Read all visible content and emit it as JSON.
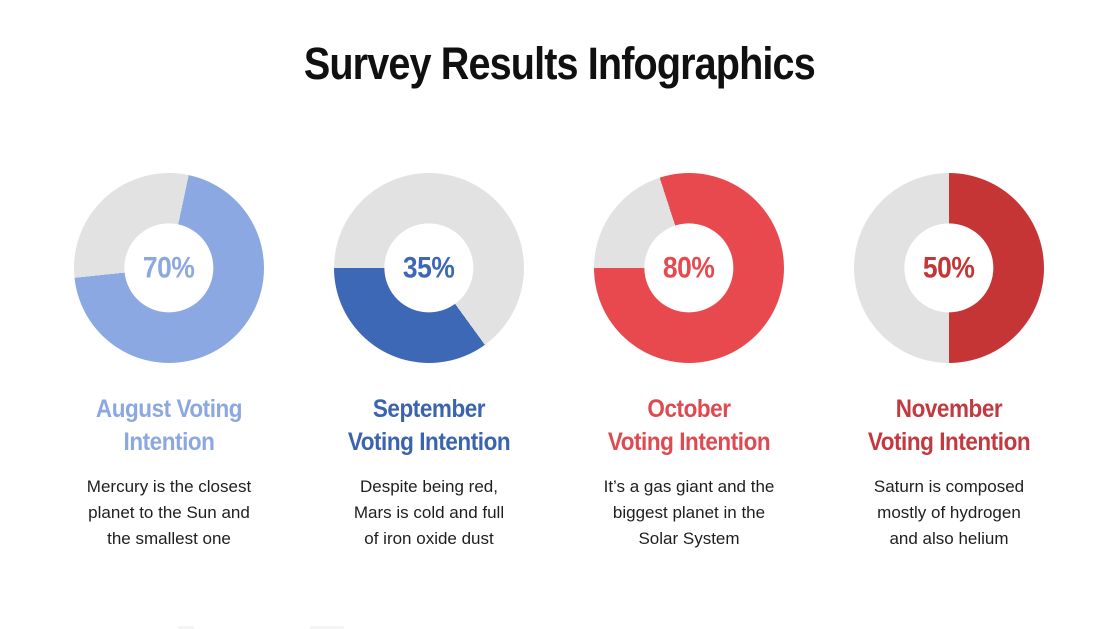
{
  "header": {
    "title": "Survey Results Infographics"
  },
  "charts": [
    {
      "percent_label": "70%",
      "value": 70,
      "start_angle": 12,
      "fill_color": "#8CA8E2",
      "track_color": "#E2E2E2",
      "title_color": "#8CA8E2",
      "title_line1": "August Voting",
      "title_line2": "Intention",
      "desc_line1": "Mercury is the closest",
      "desc_line2": "planet to the Sun and",
      "desc_line3": "the smallest one"
    },
    {
      "percent_label": "35%",
      "value": 35,
      "start_angle": 144,
      "fill_color": "#3D68B5",
      "track_color": "#E2E2E2",
      "title_color": "#3B64AE",
      "title_line1": "September",
      "title_line2": "Voting Intention",
      "desc_line1": "Despite being red,",
      "desc_line2": "Mars is cold and full",
      "desc_line3": "of iron oxide dust"
    },
    {
      "percent_label": "80%",
      "value": 80,
      "start_angle": 342,
      "fill_color": "#E8494E",
      "track_color": "#E2E2E2",
      "title_color": "#DE4A50",
      "title_line1": "October",
      "title_line2": "Voting Intention",
      "desc_line1": "It’s a gas giant and the",
      "desc_line2": "biggest planet in the",
      "desc_line3": "Solar System"
    },
    {
      "percent_label": "50%",
      "value": 50,
      "start_angle": 0,
      "fill_color": "#C63536",
      "track_color": "#E2E2E2",
      "title_color": "#C23A40",
      "title_line1": "November",
      "title_line2": "Voting Intention",
      "desc_line1": "Saturn is composed",
      "desc_line2": "mostly of hydrogen",
      "desc_line3": "and also helium"
    }
  ],
  "chart_data": {
    "type": "pie",
    "subtype": "donut",
    "title": "Survey Results Infographics",
    "unit": "%",
    "remainder_color": "#E2E2E2",
    "series": [
      {
        "name": "August Voting Intention",
        "value": 70,
        "color": "#8CA8E2"
      },
      {
        "name": "September Voting Intention",
        "value": 35,
        "color": "#3D68B5"
      },
      {
        "name": "October Voting Intention",
        "value": 80,
        "color": "#E8494E"
      },
      {
        "name": "November Voting Intention",
        "value": 50,
        "color": "#C63536"
      }
    ]
  }
}
